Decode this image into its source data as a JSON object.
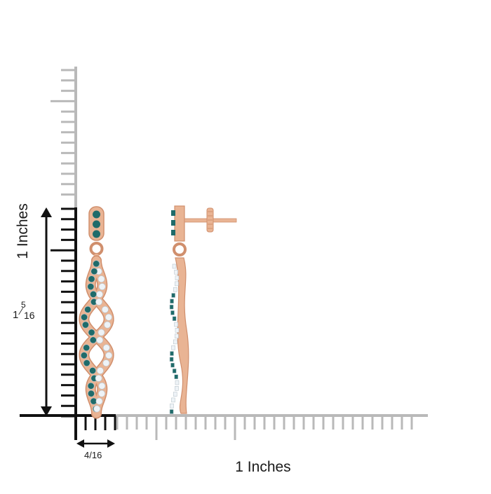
{
  "image": {
    "description_labels": {
      "width_label": "1 Inches",
      "height_label": "1 Inches",
      "height_fraction": {
        "whole": "1",
        "numerator": "5",
        "denominator": "16"
      },
      "small_width_label": "4/16"
    },
    "colors": {
      "ruler_gray": "#b9b9b9",
      "ruler_black": "#111111",
      "rose_gold": "#e9b494",
      "rose_gold_dark": "#d08f6d",
      "teal_diamond": "#1f6b6a",
      "white_diamond": "#eef3f7"
    }
  }
}
